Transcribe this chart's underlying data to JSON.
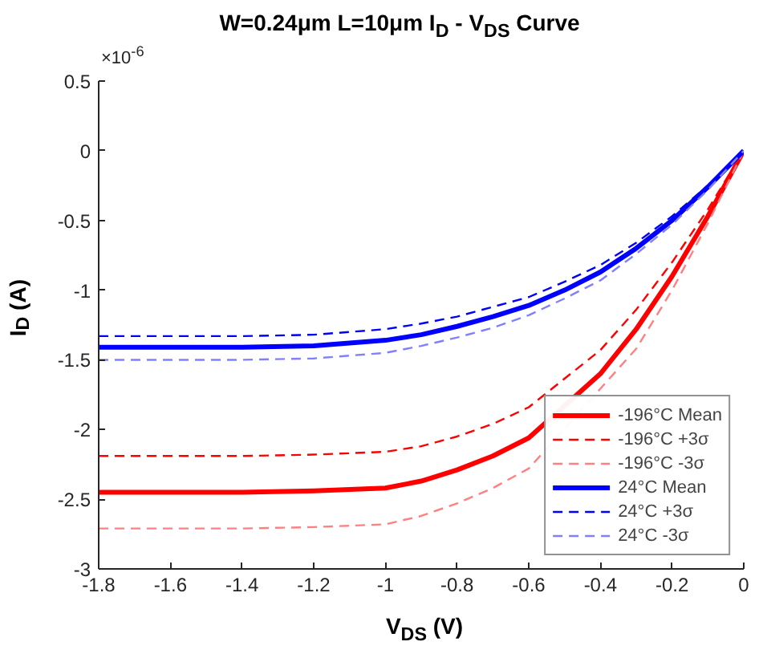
{
  "chart_data": {
    "type": "line",
    "title": "W=0.24μm L=10μm I$_{D}$ - V$_{DS}$ Curve",
    "xlabel": "V$_{DS}$ (V)",
    "ylabel": "I$_{D}$ (A)",
    "annotations": [
      "×10$^{-6}$"
    ],
    "x": [
      -1.8,
      -1.4,
      -1.2,
      -1.0,
      -0.9,
      -0.8,
      -0.7,
      -0.6,
      -0.5,
      -0.4,
      -0.3,
      -0.2,
      -0.1,
      0
    ],
    "xlim": [
      -1.8,
      0
    ],
    "xticks": [
      -1.8,
      -1.6,
      -1.4,
      -1.2,
      -1,
      -0.8,
      -0.6,
      -0.4,
      -0.2,
      0
    ],
    "ylim": [
      -3,
      0.5
    ],
    "yticks": [
      -3,
      -2.5,
      -2,
      -1.5,
      -1,
      -0.5,
      0,
      0.5
    ],
    "grid": false,
    "legend": "bottom right",
    "series": [
      {
        "name": "-196°C Mean",
        "color": "#ff0000",
        "line_style": "solid",
        "x": [
          -1.8,
          -1.4,
          -1.2,
          -1.0,
          -0.9,
          -0.8,
          -0.7,
          -0.6,
          -0.4,
          -0.3,
          -0.2,
          -0.1,
          0
        ],
        "values": [
          -2.45,
          -2.45,
          -2.44,
          -2.42,
          -2.37,
          -2.29,
          -2.19,
          -2.06,
          -1.6,
          -1.28,
          -0.9,
          -0.47,
          0
        ]
      },
      {
        "name": "-196°C +3σ",
        "color": "#ff0000",
        "line_style": "dashed",
        "x": [
          -1.8,
          -1.4,
          -1.2,
          -1.0,
          -0.9,
          -0.8,
          -0.7,
          -0.6,
          -0.4,
          -0.3,
          -0.2,
          -0.1,
          0
        ],
        "values": [
          -2.19,
          -2.19,
          -2.18,
          -2.16,
          -2.12,
          -2.05,
          -1.96,
          -1.84,
          -1.43,
          -1.14,
          -0.8,
          -0.42,
          0
        ]
      },
      {
        "name": "-196°C -3σ",
        "color": "#ff8080",
        "line_style": "dashed",
        "x": [
          -1.8,
          -1.4,
          -1.2,
          -1.0,
          -0.9,
          -0.8,
          -0.7,
          -0.6,
          -0.3,
          -0.2,
          -0.1,
          0
        ],
        "values": [
          -2.71,
          -2.71,
          -2.7,
          -2.68,
          -2.62,
          -2.53,
          -2.42,
          -2.28,
          -1.42,
          -1.0,
          -0.52,
          0
        ]
      },
      {
        "name": "24°C Mean",
        "color": "#0000ff",
        "line_style": "solid",
        "values": [
          -1.41,
          -1.41,
          -1.4,
          -1.36,
          -1.32,
          -1.26,
          -1.19,
          -1.11,
          -1.0,
          -0.87,
          -0.7,
          -0.5,
          -0.26,
          0
        ]
      },
      {
        "name": "24°C +3σ",
        "color": "#0000ff",
        "line_style": "dashed",
        "values": [
          -1.33,
          -1.33,
          -1.32,
          -1.28,
          -1.24,
          -1.19,
          -1.12,
          -1.05,
          -0.94,
          -0.82,
          -0.66,
          -0.47,
          -0.25,
          0
        ]
      },
      {
        "name": "24°C -3σ",
        "color": "#8080ff",
        "line_style": "dashed",
        "values": [
          -1.5,
          -1.5,
          -1.49,
          -1.45,
          -1.4,
          -1.34,
          -1.27,
          -1.18,
          -1.06,
          -0.93,
          -0.74,
          -0.53,
          -0.28,
          0
        ]
      }
    ]
  }
}
